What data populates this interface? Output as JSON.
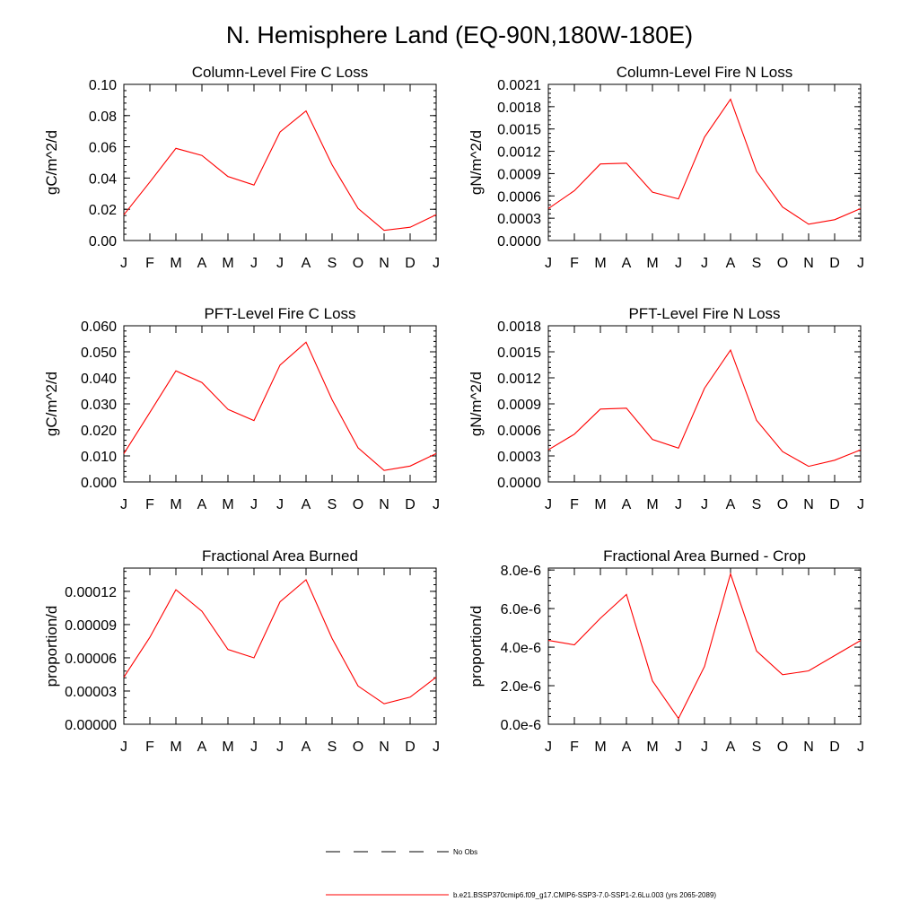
{
  "figure": {
    "title": "N. Hemisphere Land (EQ-90N,180W-180E)"
  },
  "months": [
    "J",
    "F",
    "M",
    "A",
    "M",
    "J",
    "J",
    "A",
    "S",
    "O",
    "N",
    "D",
    "J"
  ],
  "colors": {
    "model": "#ff0000",
    "obs": "#000000",
    "frame": "#000000"
  },
  "legend": {
    "obs_label": "No Obs",
    "model_label": "b.e21.BSSP370cmip6.f09_g17.CMIP6-SSP3-7.0-SSP1-2.6Lu.003 (yrs 2065-2089)"
  },
  "chart_data": [
    {
      "type": "line",
      "title": "Column-Level Fire C Loss",
      "ylabel": "gC/m^2/d",
      "ylim": [
        0,
        0.1
      ],
      "yticks": [
        "0.00",
        "0.02",
        "0.04",
        "0.06",
        "0.08",
        "0.10"
      ],
      "categories": [
        "J",
        "F",
        "M",
        "A",
        "M",
        "J",
        "J",
        "A",
        "S",
        "O",
        "N",
        "D",
        "J"
      ],
      "series": [
        {
          "values": [
            0.0165,
            0.0375,
            0.059,
            0.0545,
            0.041,
            0.0355,
            0.0695,
            0.083,
            0.0485,
            0.0205,
            0.0065,
            0.0085,
            0.0165
          ]
        }
      ]
    },
    {
      "type": "line",
      "title": "Column-Level Fire N Loss",
      "ylabel": "gN/m^2/d",
      "ylim": [
        0,
        0.0021
      ],
      "yticks": [
        "0.0000",
        "0.0003",
        "0.0006",
        "0.0009",
        "0.0012",
        "0.0015",
        "0.0018",
        "0.0021"
      ],
      "categories": [
        "J",
        "F",
        "M",
        "A",
        "M",
        "J",
        "J",
        "A",
        "S",
        "O",
        "N",
        "D",
        "J"
      ],
      "series": [
        {
          "values": [
            0.00043,
            0.00067,
            0.00103,
            0.00104,
            0.00065,
            0.00056,
            0.00139,
            0.0019,
            0.00093,
            0.00045,
            0.00022,
            0.00028,
            0.00043
          ]
        }
      ]
    },
    {
      "type": "line",
      "title": "PFT-Level Fire C Loss",
      "ylabel": "gC/m^2/d",
      "ylim": [
        0,
        0.06
      ],
      "yticks": [
        "0.000",
        "0.010",
        "0.020",
        "0.030",
        "0.040",
        "0.050",
        "0.060"
      ],
      "categories": [
        "J",
        "F",
        "M",
        "A",
        "M",
        "J",
        "J",
        "A",
        "S",
        "O",
        "N",
        "D",
        "J"
      ],
      "series": [
        {
          "values": [
            0.0109,
            0.0267,
            0.0427,
            0.0382,
            0.0279,
            0.0236,
            0.0449,
            0.0537,
            0.0316,
            0.0131,
            0.0044,
            0.0061,
            0.0109
          ]
        }
      ]
    },
    {
      "type": "line",
      "title": "PFT-Level Fire N Loss",
      "ylabel": "gN/m^2/d",
      "ylim": [
        0,
        0.0018
      ],
      "yticks": [
        "0.0000",
        "0.0003",
        "0.0006",
        "0.0009",
        "0.0012",
        "0.0015",
        "0.0018"
      ],
      "categories": [
        "J",
        "F",
        "M",
        "A",
        "M",
        "J",
        "J",
        "A",
        "S",
        "O",
        "N",
        "D",
        "J"
      ],
      "series": [
        {
          "values": [
            0.00037,
            0.00055,
            0.00084,
            0.00085,
            0.00049,
            0.00039,
            0.00108,
            0.00152,
            0.00071,
            0.00035,
            0.00018,
            0.00025,
            0.00037
          ]
        }
      ]
    },
    {
      "type": "line",
      "title": "Fractional Area Burned",
      "ylabel": "proportion/d",
      "ylim": [
        0,
        0.000141
      ],
      "yticks": [
        "0.00000",
        "0.00003",
        "0.00006",
        "0.00009",
        "0.00012"
      ],
      "categories": [
        "J",
        "F",
        "M",
        "A",
        "M",
        "J",
        "J",
        "A",
        "S",
        "O",
        "N",
        "D",
        "J"
      ],
      "series": [
        {
          "values": [
            4.25e-05,
            7.85e-05,
            0.0001215,
            0.000102,
            6.75e-05,
            6e-05,
            0.0001105,
            0.0001305,
            7.75e-05,
            3.45e-05,
            1.85e-05,
            2.45e-05,
            4.25e-05
          ]
        }
      ]
    },
    {
      "type": "line",
      "title": "Fractional Area Burned - Crop",
      "ylabel": "proportion/d",
      "ylim": [
        0,
        8.1e-06
      ],
      "yticks": [
        "0.0e-6",
        "2.0e-6",
        "4.0e-6",
        "6.0e-6",
        "8.0e-6"
      ],
      "categories": [
        "J",
        "F",
        "M",
        "A",
        "M",
        "J",
        "J",
        "A",
        "S",
        "O",
        "N",
        "D",
        "J"
      ],
      "series": [
        {
          "values": [
            4.35e-06,
            4.12e-06,
            5.5e-06,
            6.73e-06,
            2.25e-06,
            3e-07,
            3e-06,
            7.8e-06,
            3.8e-06,
            2.57e-06,
            2.77e-06,
            3.56e-06,
            4.35e-06
          ]
        }
      ]
    }
  ]
}
